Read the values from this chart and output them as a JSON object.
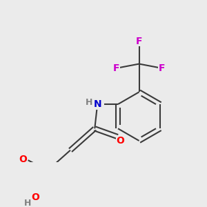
{
  "background_color": "#ebebeb",
  "bond_color": "#3a3a3a",
  "atom_colors": {
    "O": "#ff0000",
    "N": "#0000cc",
    "F": "#cc00cc",
    "C": "#3a3a3a",
    "H": "#808080"
  },
  "lw": 1.5,
  "fs": 10
}
